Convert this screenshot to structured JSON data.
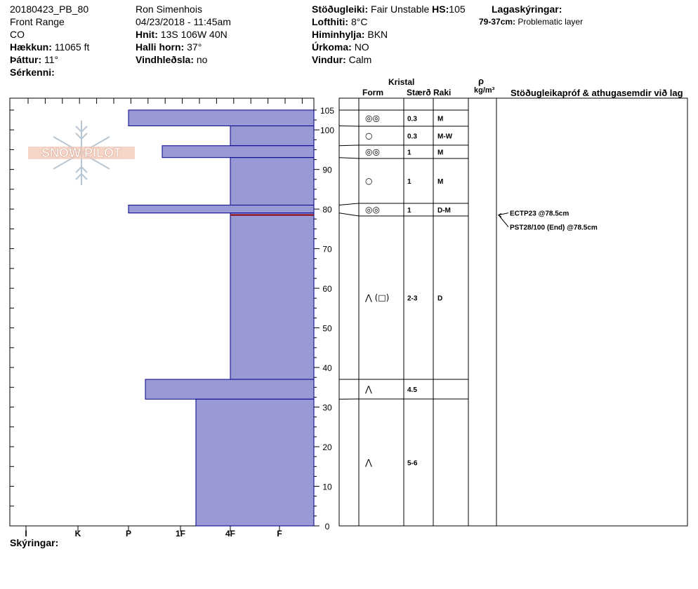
{
  "header": {
    "col1": {
      "id": "20180423_PB_80",
      "range": "Front Range",
      "state": "CO",
      "elev_label": "Hækkun:",
      "elev_value": "11065 ft",
      "aspect_label": "Þáttur:",
      "aspect_value": "11°",
      "special_label": "Sérkenni:"
    },
    "col2": {
      "observer": "Ron Simenhois",
      "datetime": "04/23/2018 - 11:45am",
      "coords_label": "Hnit:",
      "coords_value": "13S 106W 40N",
      "slope_label": "Halli horn:",
      "slope_value": "37°",
      "wind_load_label": "Vindhleðsla:",
      "wind_load_value": "no"
    },
    "col3": {
      "stability_label": "Stöðugleiki:",
      "stability_value": "Fair Unstable",
      "hs_label": "HS:",
      "hs_value": "105",
      "airtemp_label": "Lofthiti:",
      "airtemp_value": "8°C",
      "sky_label": "Himinhylja:",
      "sky_value": "BKN",
      "precip_label": "Úrkoma:",
      "precip_value": "NO",
      "wind_label": "Vindur:",
      "wind_value": "Calm"
    },
    "col4": {
      "layer_notes_label": "Lagaskýringar:",
      "layer_note_range": "79-37cm:",
      "layer_note_text": "Problematic layer"
    }
  },
  "logo_text": "SNOW PILOT",
  "footer_label": "Skýringar:",
  "columns": {
    "crystal": "Kristal",
    "form": "Form",
    "size": "Stærð",
    "moisture": "Raki",
    "rho": "ρ",
    "density_unit": "kg/m³",
    "tests": "Stöðugleikapróf & athugasemdir við lag"
  },
  "chart_data": {
    "type": "bar",
    "orientation": "horizontal",
    "ylim": [
      0,
      108
    ],
    "yticks": [
      0,
      10,
      20,
      30,
      40,
      50,
      60,
      70,
      80,
      90,
      100,
      105
    ],
    "hardness_categories": [
      "I",
      "K",
      "P",
      "1F",
      "4F",
      "F"
    ],
    "layers": [
      {
        "top": 105,
        "bottom": 101,
        "hardness": "P"
      },
      {
        "top": 101,
        "bottom": 96,
        "hardness": "4F"
      },
      {
        "top": 96,
        "bottom": 93,
        "hardness": "P+"
      },
      {
        "top": 93,
        "bottom": 81,
        "hardness": "4F"
      },
      {
        "top": 81,
        "bottom": 79,
        "hardness": "P"
      },
      {
        "top": 79,
        "bottom": 37,
        "hardness": "4F"
      },
      {
        "top": 37,
        "bottom": 32,
        "hardness": "P-"
      },
      {
        "top": 32,
        "bottom": 0,
        "hardness": "1F+"
      }
    ],
    "weak_layer_depth": 78.5,
    "crystal_rows": [
      {
        "form": "◎◎",
        "size": "0.3",
        "moisture": "M"
      },
      {
        "form": "○",
        "size": "0.3",
        "moisture": "M-W"
      },
      {
        "form": "◎◎",
        "size": "1",
        "moisture": "M"
      },
      {
        "form": "○",
        "size": "1",
        "moisture": "M"
      },
      {
        "form": "◎◎",
        "size": "1",
        "moisture": "D-M"
      },
      {
        "form": "⋀ (□)",
        "size": "2-3",
        "moisture": "D"
      },
      {
        "form": "⋀",
        "size": "4.5",
        "moisture": ""
      },
      {
        "form": "⋀",
        "size": "5-6",
        "moisture": ""
      }
    ],
    "tests": [
      {
        "text": "ECTP23 @78.5cm",
        "depth": 78.5
      },
      {
        "text": "PST28/100 (End) @78.5cm",
        "depth": 78.5
      }
    ]
  }
}
